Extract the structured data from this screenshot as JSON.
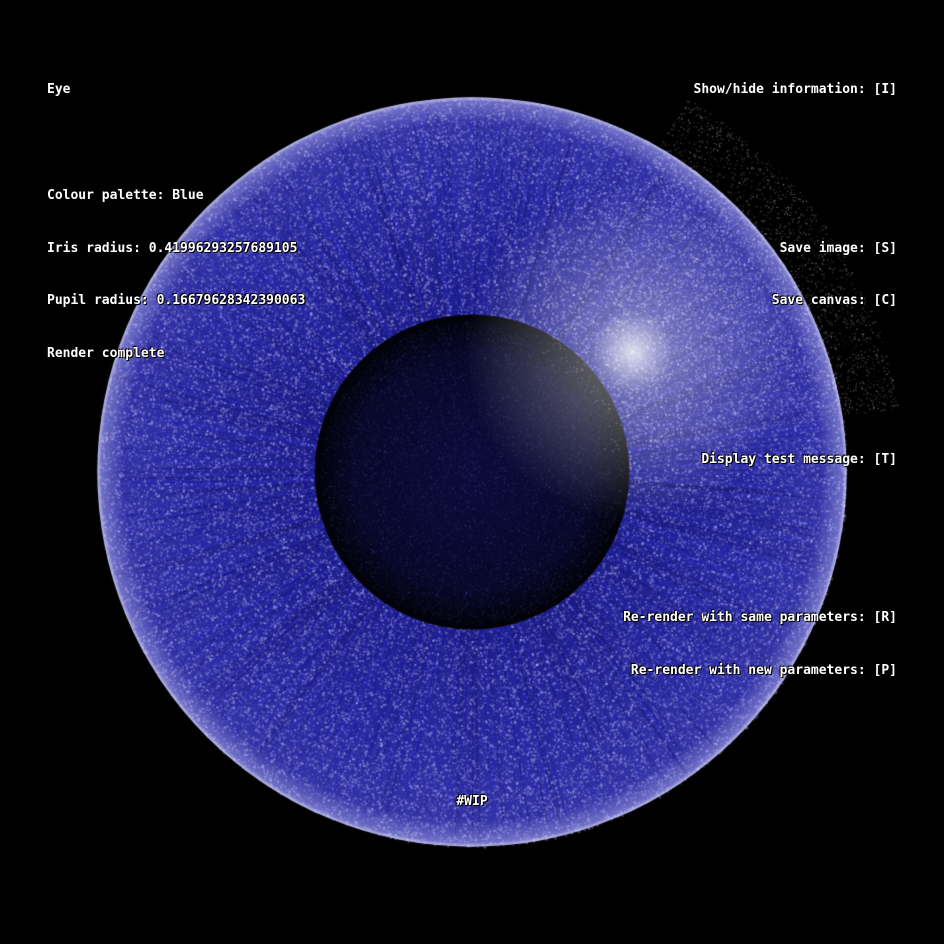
{
  "info": {
    "title": "Eye",
    "palette_line": "Colour palette: Blue",
    "iris_radius_line": "Iris radius: 0.41996293257689105",
    "pupil_radius_line": "Pupil radius: 0.16679628342390063",
    "status_line": "Render complete"
  },
  "controls": {
    "toggle_info": "Show/hide information: [I]",
    "save_image": "Save image: [S]",
    "save_canvas": "Save canvas: [C]",
    "test_message": "Display test message: [T]",
    "rerender_same": "Re-render with same parameters: [R]",
    "rerender_new": "Re-render with new parameters: [P]"
  },
  "watermark": "#WIP",
  "render": {
    "palette": "Blue",
    "iris_radius": 0.41996293257689105,
    "pupil_radius": 0.16679628342390063,
    "colors": {
      "background": "#000000",
      "iris_base": "#2a2a9e",
      "iris_particle": "#c8c8ff",
      "pupil": "#05051a",
      "highlight": "#ffffff",
      "text": "#ffffff"
    }
  }
}
